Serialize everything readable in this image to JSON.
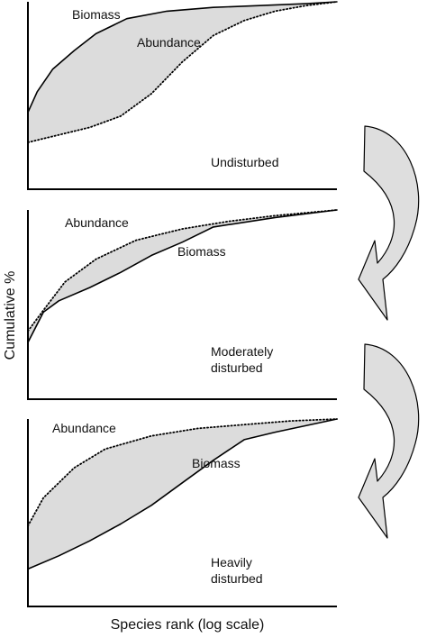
{
  "figure": {
    "ylabel": "Cumulative %",
    "xlabel": "Species rank (log scale)"
  },
  "colors": {
    "fill_between": "#dcdcdc",
    "line": "#000000",
    "arrow_fill": "#dedede"
  },
  "chart_data": [
    {
      "type": "line",
      "title": "Undisturbed",
      "xscale": "log",
      "shade_between_series": true,
      "series": [
        {
          "name": "Biomass",
          "style": "solid",
          "x": [
            0,
            0.03,
            0.08,
            0.15,
            0.22,
            0.32,
            0.45,
            0.6,
            0.75,
            0.9,
            1
          ],
          "y": [
            0.41,
            0.52,
            0.64,
            0.74,
            0.83,
            0.91,
            0.95,
            0.97,
            0.98,
            0.99,
            1
          ]
        },
        {
          "name": "Abundance",
          "style": "dotted",
          "x": [
            0,
            0.1,
            0.2,
            0.3,
            0.4,
            0.5,
            0.6,
            0.7,
            0.8,
            0.9,
            1
          ],
          "y": [
            0.25,
            0.29,
            0.33,
            0.39,
            0.51,
            0.68,
            0.82,
            0.9,
            0.95,
            0.98,
            1
          ]
        }
      ]
    },
    {
      "type": "line",
      "title": "Moderately disturbed",
      "xscale": "log",
      "shade_between_series": true,
      "series": [
        {
          "name": "Abundance",
          "style": "dotted",
          "x": [
            0,
            0.05,
            0.12,
            0.22,
            0.35,
            0.5,
            0.65,
            0.8,
            1
          ],
          "y": [
            0.36,
            0.47,
            0.62,
            0.74,
            0.84,
            0.9,
            0.94,
            0.97,
            1
          ]
        },
        {
          "name": "Biomass",
          "style": "solid",
          "x": [
            0,
            0.05,
            0.1,
            0.2,
            0.3,
            0.4,
            0.5,
            0.6,
            0.8,
            1
          ],
          "y": [
            0.3,
            0.46,
            0.52,
            0.59,
            0.67,
            0.76,
            0.83,
            0.91,
            0.96,
            1
          ]
        }
      ]
    },
    {
      "type": "line",
      "title": "Heavily disturbed",
      "xscale": "log",
      "shade_between_series": true,
      "series": [
        {
          "name": "Abundance",
          "style": "dotted",
          "x": [
            0,
            0.05,
            0.15,
            0.25,
            0.4,
            0.55,
            0.7,
            0.85,
            1
          ],
          "y": [
            0.43,
            0.58,
            0.74,
            0.84,
            0.91,
            0.95,
            0.97,
            0.99,
            1
          ]
        },
        {
          "name": "Biomass",
          "style": "solid",
          "x": [
            0,
            0.1,
            0.2,
            0.3,
            0.4,
            0.5,
            0.6,
            0.7,
            0.8,
            1
          ],
          "y": [
            0.2,
            0.27,
            0.35,
            0.44,
            0.54,
            0.66,
            0.78,
            0.89,
            0.93,
            1
          ]
        }
      ]
    }
  ]
}
